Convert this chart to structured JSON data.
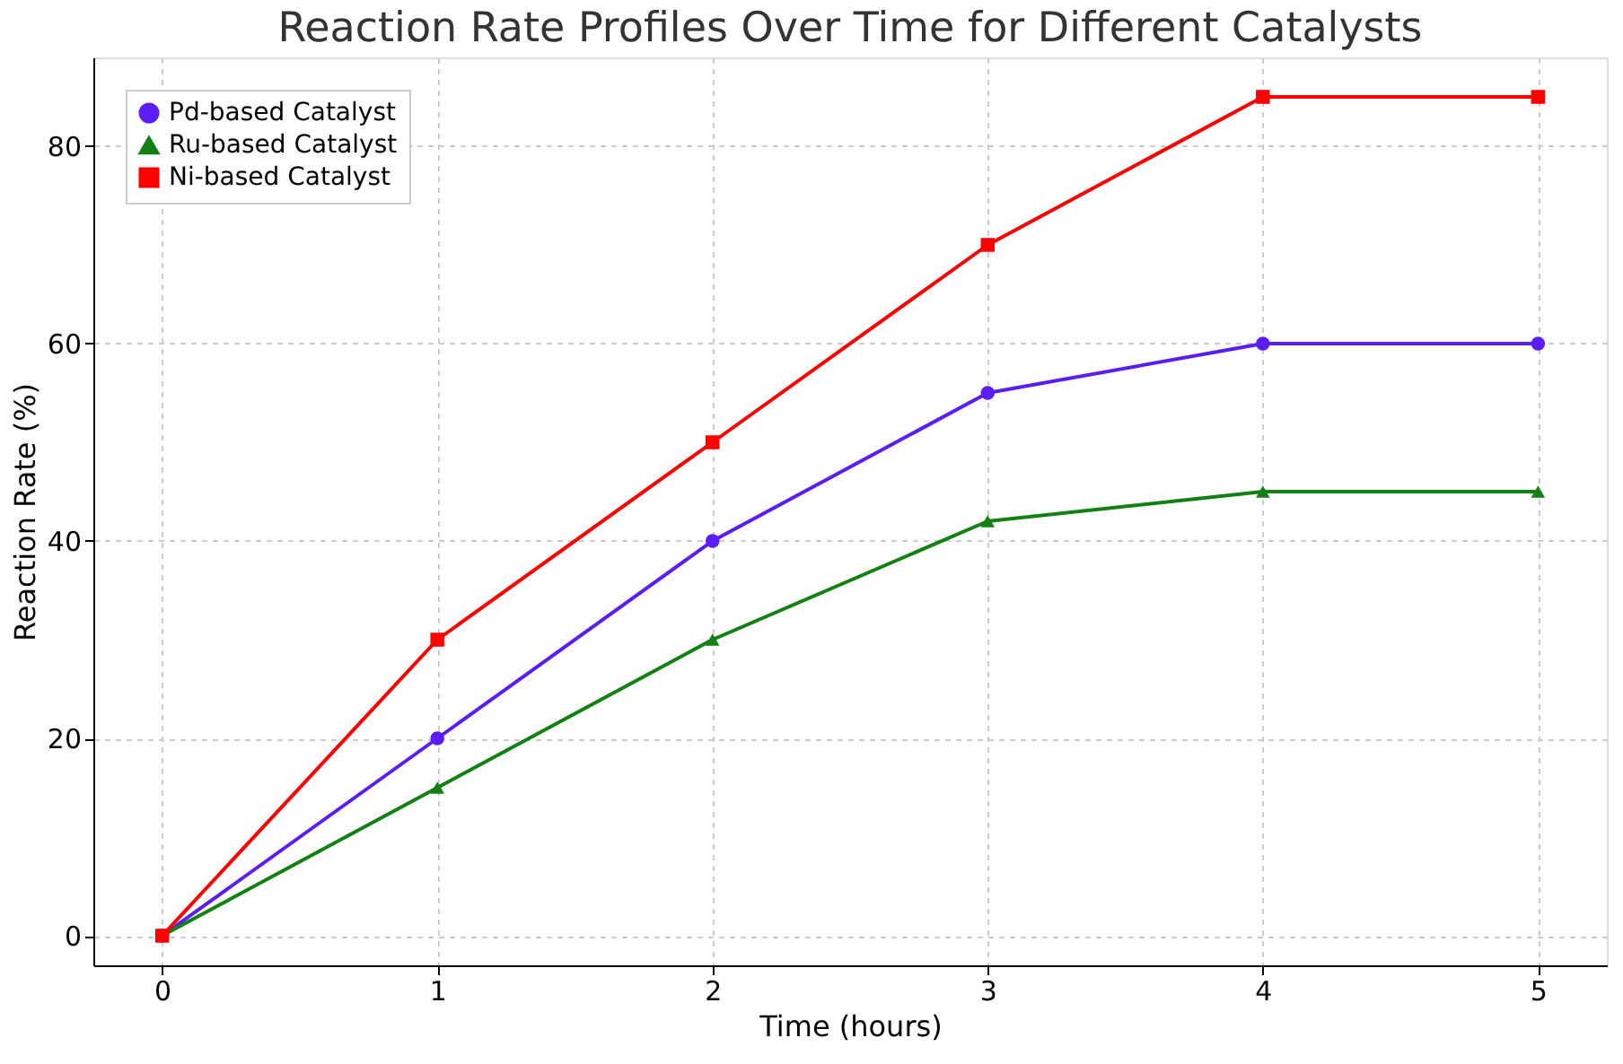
{
  "chart_data": {
    "type": "line",
    "title": "Reaction Rate Profiles Over Time for Different Catalysts",
    "xlabel": "Time (hours)",
    "ylabel": "Reaction Rate (%)",
    "x": [
      0,
      1,
      2,
      3,
      4,
      5
    ],
    "series": [
      {
        "name": "Pd-based Catalyst",
        "color": "#5a1ef5",
        "marker": "circle",
        "values": [
          0,
          20,
          40,
          55,
          60,
          60
        ]
      },
      {
        "name": "Ru-based Catalyst",
        "color": "#128012",
        "marker": "triangle",
        "values": [
          0,
          15,
          30,
          42,
          45,
          45
        ]
      },
      {
        "name": "Ni-based Catalyst",
        "color": "#ff0000",
        "marker": "square",
        "values": [
          0,
          30,
          50,
          70,
          85,
          85
        ]
      }
    ],
    "xlim": [
      -0.25,
      5.25
    ],
    "xticks": [
      0,
      1,
      2,
      3,
      4,
      5
    ],
    "ylim": [
      -3,
      89
    ],
    "yticks": [
      0,
      20,
      40,
      60,
      80
    ],
    "grid": true,
    "legend": "top left",
    "line_style": "solid"
  }
}
